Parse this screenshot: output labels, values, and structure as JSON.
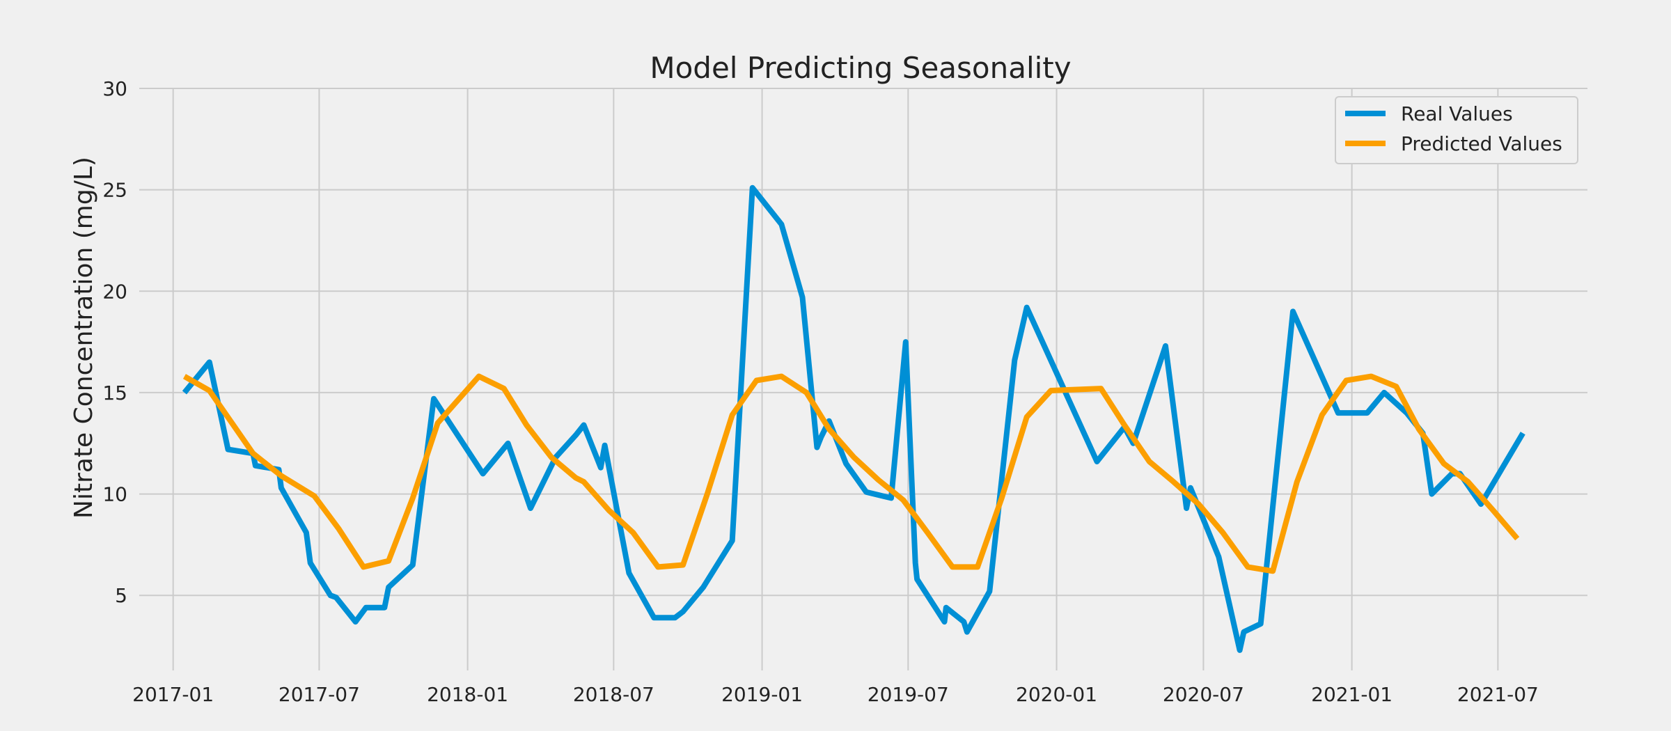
{
  "chart_data": {
    "type": "line",
    "title": "Model Predicting Seasonality",
    "xlabel": "",
    "ylabel": "Nitrate Concentration (mg/L)",
    "x_ticks": [
      "2017-01",
      "2017-07",
      "2018-01",
      "2018-07",
      "2019-01",
      "2019-07",
      "2020-01",
      "2020-07",
      "2021-01",
      "2021-07"
    ],
    "y_ticks": [
      5,
      10,
      15,
      20,
      25,
      30
    ],
    "xlim": [
      "2016-11-20",
      "2021-10-20"
    ],
    "ylim": [
      1.3,
      30
    ],
    "grid": true,
    "legend_position": "top-right",
    "colors": {
      "background": "#f0f0f0",
      "real": "#008fd5",
      "predicted": "#fc9f00"
    },
    "series": [
      {
        "name": "Real Values",
        "points": [
          [
            "2017-01-15",
            15.0
          ],
          [
            "2017-02-15",
            16.5
          ],
          [
            "2017-03-10",
            12.2
          ],
          [
            "2017-04-10",
            12.0
          ],
          [
            "2017-04-13",
            11.4
          ],
          [
            "2017-05-12",
            11.2
          ],
          [
            "2017-05-15",
            10.3
          ],
          [
            "2017-06-15",
            8.1
          ],
          [
            "2017-06-20",
            6.6
          ],
          [
            "2017-07-15",
            5.0
          ],
          [
            "2017-07-22",
            4.9
          ],
          [
            "2017-08-15",
            3.7
          ],
          [
            "2017-08-28",
            4.4
          ],
          [
            "2017-09-20",
            4.4
          ],
          [
            "2017-09-25",
            5.4
          ],
          [
            "2017-10-25",
            6.5
          ],
          [
            "2017-11-20",
            14.7
          ],
          [
            "2018-01-20",
            11.0
          ],
          [
            "2018-02-20",
            12.5
          ],
          [
            "2018-03-20",
            9.3
          ],
          [
            "2018-04-20",
            11.8
          ],
          [
            "2018-05-15",
            12.9
          ],
          [
            "2018-05-25",
            13.4
          ],
          [
            "2018-06-15",
            11.3
          ],
          [
            "2018-06-20",
            12.4
          ],
          [
            "2018-07-20",
            6.1
          ],
          [
            "2018-08-20",
            3.9
          ],
          [
            "2018-09-15",
            3.9
          ],
          [
            "2018-09-25",
            4.2
          ],
          [
            "2018-10-20",
            5.4
          ],
          [
            "2018-11-25",
            7.7
          ],
          [
            "2018-12-20",
            25.1
          ],
          [
            "2019-01-25",
            23.3
          ],
          [
            "2019-02-20",
            19.7
          ],
          [
            "2019-03-10",
            12.3
          ],
          [
            "2019-03-15",
            12.8
          ],
          [
            "2019-03-25",
            13.6
          ],
          [
            "2019-04-15",
            11.5
          ],
          [
            "2019-05-10",
            10.1
          ],
          [
            "2019-06-10",
            9.8
          ],
          [
            "2019-06-28",
            17.5
          ],
          [
            "2019-07-10",
            6.6
          ],
          [
            "2019-07-12",
            5.8
          ],
          [
            "2019-08-15",
            3.7
          ],
          [
            "2019-08-17",
            4.4
          ],
          [
            "2019-09-08",
            3.7
          ],
          [
            "2019-09-12",
            3.2
          ],
          [
            "2019-10-10",
            5.2
          ],
          [
            "2019-11-10",
            16.6
          ],
          [
            "2019-11-25",
            19.2
          ],
          [
            "2020-02-20",
            11.6
          ],
          [
            "2020-03-25",
            13.3
          ],
          [
            "2020-04-05",
            12.5
          ],
          [
            "2020-05-15",
            17.3
          ],
          [
            "2020-06-10",
            9.3
          ],
          [
            "2020-06-15",
            10.3
          ],
          [
            "2020-07-20",
            6.9
          ],
          [
            "2020-08-15",
            2.3
          ],
          [
            "2020-08-20",
            3.2
          ],
          [
            "2020-09-10",
            3.6
          ],
          [
            "2020-10-20",
            19.0
          ],
          [
            "2020-12-15",
            14.0
          ],
          [
            "2021-01-20",
            14.0
          ],
          [
            "2021-02-10",
            15.0
          ],
          [
            "2021-03-10",
            14.0
          ],
          [
            "2021-03-30",
            13.0
          ],
          [
            "2021-04-10",
            10.0
          ],
          [
            "2021-05-05",
            11.0
          ],
          [
            "2021-05-15",
            11.0
          ],
          [
            "2021-06-10",
            9.5
          ],
          [
            "2021-08-01",
            13.0
          ]
        ]
      },
      {
        "name": "Predicted Values",
        "points": [
          [
            "2017-01-15",
            15.8
          ],
          [
            "2017-02-15",
            15.1
          ],
          [
            "2017-04-10",
            12.0
          ],
          [
            "2017-05-15",
            10.9
          ],
          [
            "2017-06-25",
            9.9
          ],
          [
            "2017-07-25",
            8.3
          ],
          [
            "2017-08-25",
            6.4
          ],
          [
            "2017-09-25",
            6.7
          ],
          [
            "2017-10-25",
            9.8
          ],
          [
            "2017-11-25",
            13.5
          ],
          [
            "2018-01-15",
            15.8
          ],
          [
            "2018-02-15",
            15.2
          ],
          [
            "2018-03-15",
            13.4
          ],
          [
            "2018-04-15",
            11.8
          ],
          [
            "2018-05-15",
            10.8
          ],
          [
            "2018-05-25",
            10.6
          ],
          [
            "2018-06-25",
            9.2
          ],
          [
            "2018-07-25",
            8.1
          ],
          [
            "2018-08-25",
            6.4
          ],
          [
            "2018-09-25",
            6.5
          ],
          [
            "2018-10-25",
            10.0
          ],
          [
            "2018-11-25",
            13.9
          ],
          [
            "2018-12-25",
            15.6
          ],
          [
            "2019-01-25",
            15.8
          ],
          [
            "2019-02-25",
            15.0
          ],
          [
            "2019-03-25",
            13.2
          ],
          [
            "2019-04-25",
            11.8
          ],
          [
            "2019-05-25",
            10.7
          ],
          [
            "2019-06-25",
            9.7
          ],
          [
            "2019-07-25",
            8.1
          ],
          [
            "2019-08-25",
            6.4
          ],
          [
            "2019-09-25",
            6.4
          ],
          [
            "2019-10-25",
            9.8
          ],
          [
            "2019-11-25",
            13.8
          ],
          [
            "2019-12-25",
            15.1
          ],
          [
            "2020-02-25",
            15.2
          ],
          [
            "2020-03-25",
            13.4
          ],
          [
            "2020-04-25",
            11.6
          ],
          [
            "2020-05-25",
            10.6
          ],
          [
            "2020-06-25",
            9.5
          ],
          [
            "2020-07-25",
            8.1
          ],
          [
            "2020-08-25",
            6.4
          ],
          [
            "2020-09-25",
            6.2
          ],
          [
            "2020-10-25",
            10.6
          ],
          [
            "2020-11-25",
            13.9
          ],
          [
            "2020-12-25",
            15.6
          ],
          [
            "2021-01-25",
            15.8
          ],
          [
            "2021-02-25",
            15.3
          ],
          [
            "2021-03-25",
            13.2
          ],
          [
            "2021-04-25",
            11.5
          ],
          [
            "2021-05-25",
            10.6
          ],
          [
            "2021-06-25",
            9.2
          ],
          [
            "2021-07-25",
            7.8
          ]
        ]
      }
    ]
  }
}
